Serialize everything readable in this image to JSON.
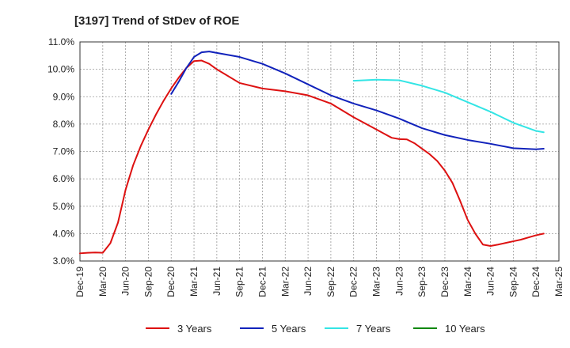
{
  "chart_data": {
    "type": "line",
    "title": "[3197]  Trend of StDev of ROE",
    "xlabel": "",
    "ylabel": "",
    "x_ticks": [
      "Dec-19",
      "Mar-20",
      "Jun-20",
      "Sep-20",
      "Dec-20",
      "Mar-21",
      "Jun-21",
      "Sep-21",
      "Dec-21",
      "Mar-22",
      "Jun-22",
      "Sep-22",
      "Dec-22",
      "Mar-23",
      "Jun-23",
      "Sep-23",
      "Dec-23",
      "Mar-24",
      "Jun-24",
      "Sep-24",
      "Dec-24",
      "Mar-25"
    ],
    "y_ticks": [
      "3.0%",
      "4.0%",
      "5.0%",
      "6.0%",
      "7.0%",
      "8.0%",
      "9.0%",
      "10.0%",
      "11.0%"
    ],
    "ylim": [
      3.0,
      11.0
    ],
    "grid": true,
    "legend_position": "bottom",
    "colors": {
      "3 Years": "#dd1111",
      "5 Years": "#1122bb",
      "7 Years": "#33e5e5",
      "10 Years": "#118811"
    },
    "series": [
      {
        "name": "3 Years",
        "points": [
          [
            "Dec-19",
            3.28
          ],
          [
            "Jan-20",
            3.3
          ],
          [
            "Feb-20",
            3.31
          ],
          [
            "Mar-20",
            3.3
          ],
          [
            "Apr-20",
            3.65
          ],
          [
            "May-20",
            4.4
          ],
          [
            "Jun-20",
            5.6
          ],
          [
            "Jul-20",
            6.5
          ],
          [
            "Aug-20",
            7.2
          ],
          [
            "Sep-20",
            7.8
          ],
          [
            "Oct-20",
            8.35
          ],
          [
            "Nov-20",
            8.85
          ],
          [
            "Dec-20",
            9.3
          ],
          [
            "Jan-21",
            9.7
          ],
          [
            "Feb-21",
            10.05
          ],
          [
            "Mar-21",
            10.3
          ],
          [
            "Apr-21",
            10.32
          ],
          [
            "May-21",
            10.2
          ],
          [
            "Jun-21",
            10.0
          ],
          [
            "Sep-21",
            9.5
          ],
          [
            "Dec-21",
            9.3
          ],
          [
            "Mar-22",
            9.2
          ],
          [
            "Jun-22",
            9.05
          ],
          [
            "Sep-22",
            8.75
          ],
          [
            "Dec-22",
            8.25
          ],
          [
            "Mar-23",
            7.8
          ],
          [
            "Apr-23",
            7.65
          ],
          [
            "May-23",
            7.5
          ],
          [
            "Jun-23",
            7.45
          ],
          [
            "Jul-23",
            7.44
          ],
          [
            "Aug-23",
            7.3
          ],
          [
            "Sep-23",
            7.1
          ],
          [
            "Oct-23",
            6.9
          ],
          [
            "Nov-23",
            6.65
          ],
          [
            "Dec-23",
            6.3
          ],
          [
            "Jan-24",
            5.85
          ],
          [
            "Feb-24",
            5.2
          ],
          [
            "Mar-24",
            4.5
          ],
          [
            "Apr-24",
            4.0
          ],
          [
            "May-24",
            3.6
          ],
          [
            "Jun-24",
            3.55
          ],
          [
            "Jul-24",
            3.6
          ],
          [
            "Aug-24",
            3.66
          ],
          [
            "Sep-24",
            3.72
          ],
          [
            "Oct-24",
            3.78
          ],
          [
            "Nov-24",
            3.86
          ],
          [
            "Dec-24",
            3.94
          ],
          [
            "Jan-25",
            4.0
          ]
        ]
      },
      {
        "name": "5 Years",
        "points": [
          [
            "Dec-20",
            9.1
          ],
          [
            "Jan-21",
            9.55
          ],
          [
            "Feb-21",
            10.05
          ],
          [
            "Mar-21",
            10.45
          ],
          [
            "Apr-21",
            10.62
          ],
          [
            "May-21",
            10.65
          ],
          [
            "Jun-21",
            10.6
          ],
          [
            "Sep-21",
            10.45
          ],
          [
            "Dec-21",
            10.2
          ],
          [
            "Mar-22",
            9.85
          ],
          [
            "Jun-22",
            9.45
          ],
          [
            "Sep-22",
            9.05
          ],
          [
            "Dec-22",
            8.75
          ],
          [
            "Mar-23",
            8.5
          ],
          [
            "Jun-23",
            8.2
          ],
          [
            "Sep-23",
            7.85
          ],
          [
            "Dec-23",
            7.6
          ],
          [
            "Mar-24",
            7.42
          ],
          [
            "Jun-24",
            7.28
          ],
          [
            "Sep-24",
            7.12
          ],
          [
            "Dec-24",
            7.08
          ],
          [
            "Jan-25",
            7.1
          ]
        ]
      },
      {
        "name": "7 Years",
        "points": [
          [
            "Dec-22",
            9.58
          ],
          [
            "Mar-23",
            9.62
          ],
          [
            "Jun-23",
            9.6
          ],
          [
            "Sep-23",
            9.4
          ],
          [
            "Dec-23",
            9.15
          ],
          [
            "Mar-24",
            8.8
          ],
          [
            "Jun-24",
            8.45
          ],
          [
            "Sep-24",
            8.05
          ],
          [
            "Dec-24",
            7.75
          ],
          [
            "Jan-25",
            7.7
          ]
        ]
      },
      {
        "name": "10 Years",
        "points": []
      }
    ]
  }
}
